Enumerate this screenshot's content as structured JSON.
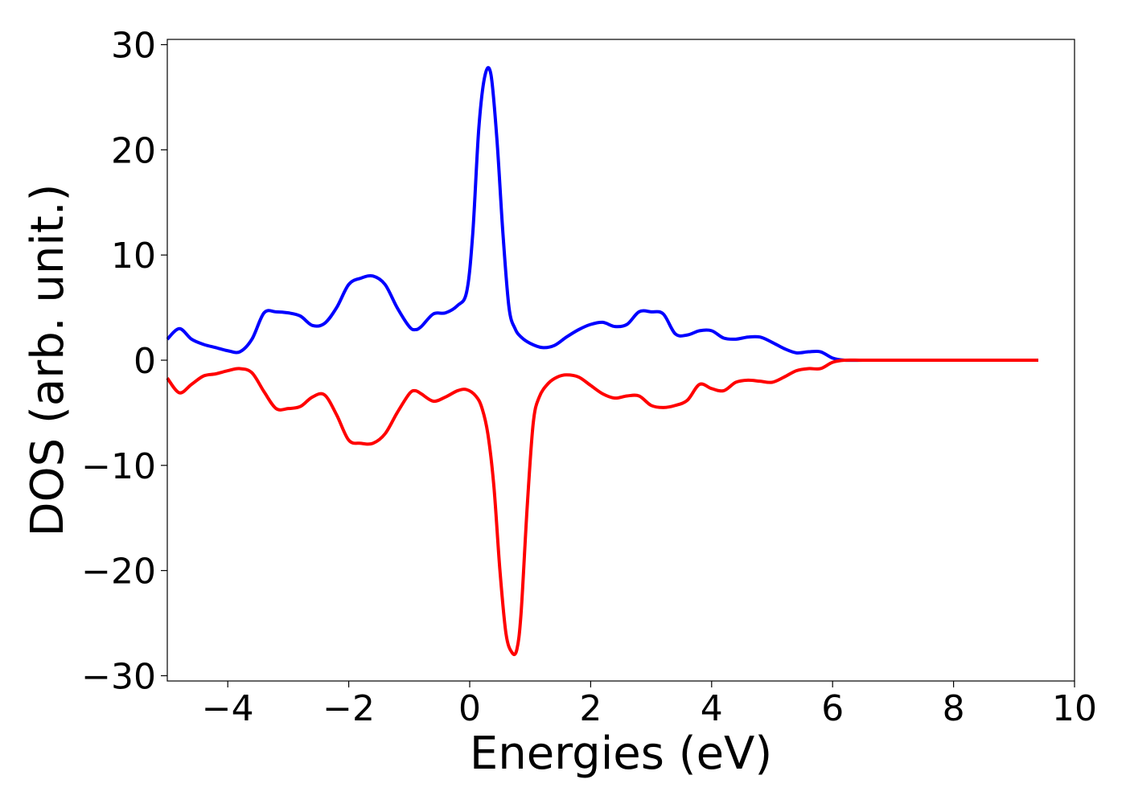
{
  "chart_data": {
    "type": "line",
    "title": "",
    "xlabel": "Energies (eV)",
    "ylabel": "DOS (arb. unit.)",
    "xlim": [
      -5,
      10
    ],
    "ylim": [
      -30.5,
      30.5
    ],
    "xticks": [
      -4,
      -2,
      0,
      2,
      4,
      6,
      8,
      10
    ],
    "yticks": [
      -30,
      -20,
      -10,
      0,
      10,
      20,
      30
    ],
    "xtick_labels": [
      "−4",
      "−2",
      "0",
      "2",
      "4",
      "6",
      "8",
      "10"
    ],
    "ytick_labels": [
      "−30",
      "−20",
      "−10",
      "0",
      "10",
      "20",
      "30"
    ],
    "grid": false,
    "legend": "none",
    "series": [
      {
        "color": "#0000ff",
        "x": [
          -5.0,
          -4.8,
          -4.6,
          -4.4,
          -4.2,
          -4.0,
          -3.8,
          -3.6,
          -3.4,
          -3.2,
          -3.0,
          -2.8,
          -2.6,
          -2.4,
          -2.2,
          -2.0,
          -1.8,
          -1.6,
          -1.4,
          -1.2,
          -1.0,
          -0.9,
          -0.8,
          -0.6,
          -0.4,
          -0.2,
          -0.05,
          0.05,
          0.15,
          0.25,
          0.35,
          0.45,
          0.55,
          0.65,
          0.75,
          0.85,
          1.0,
          1.2,
          1.4,
          1.6,
          1.8,
          2.0,
          2.2,
          2.4,
          2.6,
          2.8,
          3.0,
          3.2,
          3.4,
          3.6,
          3.8,
          4.0,
          4.2,
          4.4,
          4.6,
          4.8,
          5.0,
          5.2,
          5.4,
          5.6,
          5.8,
          6.0,
          6.2,
          6.5,
          7.0,
          8.0,
          9.0,
          9.4
        ],
        "y": [
          2.0,
          3.0,
          2.0,
          1.5,
          1.2,
          0.9,
          0.8,
          2.0,
          4.5,
          4.6,
          4.5,
          4.2,
          3.3,
          3.5,
          5.0,
          7.2,
          7.8,
          8.0,
          7.2,
          5.0,
          3.2,
          2.9,
          3.2,
          4.4,
          4.5,
          5.2,
          6.5,
          12.0,
          22.0,
          27.0,
          27.2,
          21.0,
          12.0,
          5.0,
          3.0,
          2.2,
          1.6,
          1.2,
          1.4,
          2.2,
          2.9,
          3.4,
          3.6,
          3.2,
          3.4,
          4.6,
          4.6,
          4.4,
          2.5,
          2.4,
          2.8,
          2.8,
          2.1,
          2.0,
          2.2,
          2.2,
          1.7,
          1.1,
          0.7,
          0.8,
          0.8,
          0.2,
          0.0,
          0.0,
          0.0,
          0.0,
          0.0,
          0.0
        ]
      },
      {
        "color": "#ff0000",
        "x": [
          -5.0,
          -4.8,
          -4.6,
          -4.4,
          -4.2,
          -4.0,
          -3.8,
          -3.6,
          -3.4,
          -3.2,
          -3.0,
          -2.8,
          -2.6,
          -2.4,
          -2.2,
          -2.0,
          -1.8,
          -1.6,
          -1.4,
          -1.2,
          -1.0,
          -0.9,
          -0.8,
          -0.6,
          -0.4,
          -0.2,
          -0.05,
          0.1,
          0.2,
          0.3,
          0.4,
          0.5,
          0.6,
          0.7,
          0.78,
          0.85,
          0.95,
          1.05,
          1.15,
          1.3,
          1.45,
          1.6,
          1.8,
          2.0,
          2.2,
          2.4,
          2.6,
          2.8,
          3.0,
          3.2,
          3.4,
          3.6,
          3.8,
          4.0,
          4.2,
          4.4,
          4.6,
          4.8,
          5.0,
          5.2,
          5.4,
          5.6,
          5.8,
          6.0,
          6.2,
          6.5,
          7.0,
          8.0,
          9.0,
          9.4
        ],
        "y": [
          -1.7,
          -3.1,
          -2.3,
          -1.5,
          -1.3,
          -1.0,
          -0.8,
          -1.2,
          -3.0,
          -4.6,
          -4.6,
          -4.4,
          -3.5,
          -3.3,
          -5.2,
          -7.6,
          -7.9,
          -7.9,
          -7.0,
          -5.0,
          -3.2,
          -2.9,
          -3.2,
          -3.9,
          -3.5,
          -2.9,
          -2.8,
          -3.4,
          -4.5,
          -7.0,
          -12.0,
          -20.0,
          -26.0,
          -27.8,
          -27.5,
          -24.0,
          -14.0,
          -6.0,
          -3.5,
          -2.2,
          -1.6,
          -1.4,
          -1.6,
          -2.4,
          -3.2,
          -3.6,
          -3.4,
          -3.4,
          -4.3,
          -4.5,
          -4.3,
          -3.8,
          -2.3,
          -2.7,
          -2.9,
          -2.1,
          -1.9,
          -2.0,
          -2.1,
          -1.6,
          -1.0,
          -0.8,
          -0.8,
          -0.2,
          0.0,
          0.0,
          0.0,
          0.0,
          0.0,
          0.0
        ]
      }
    ]
  }
}
